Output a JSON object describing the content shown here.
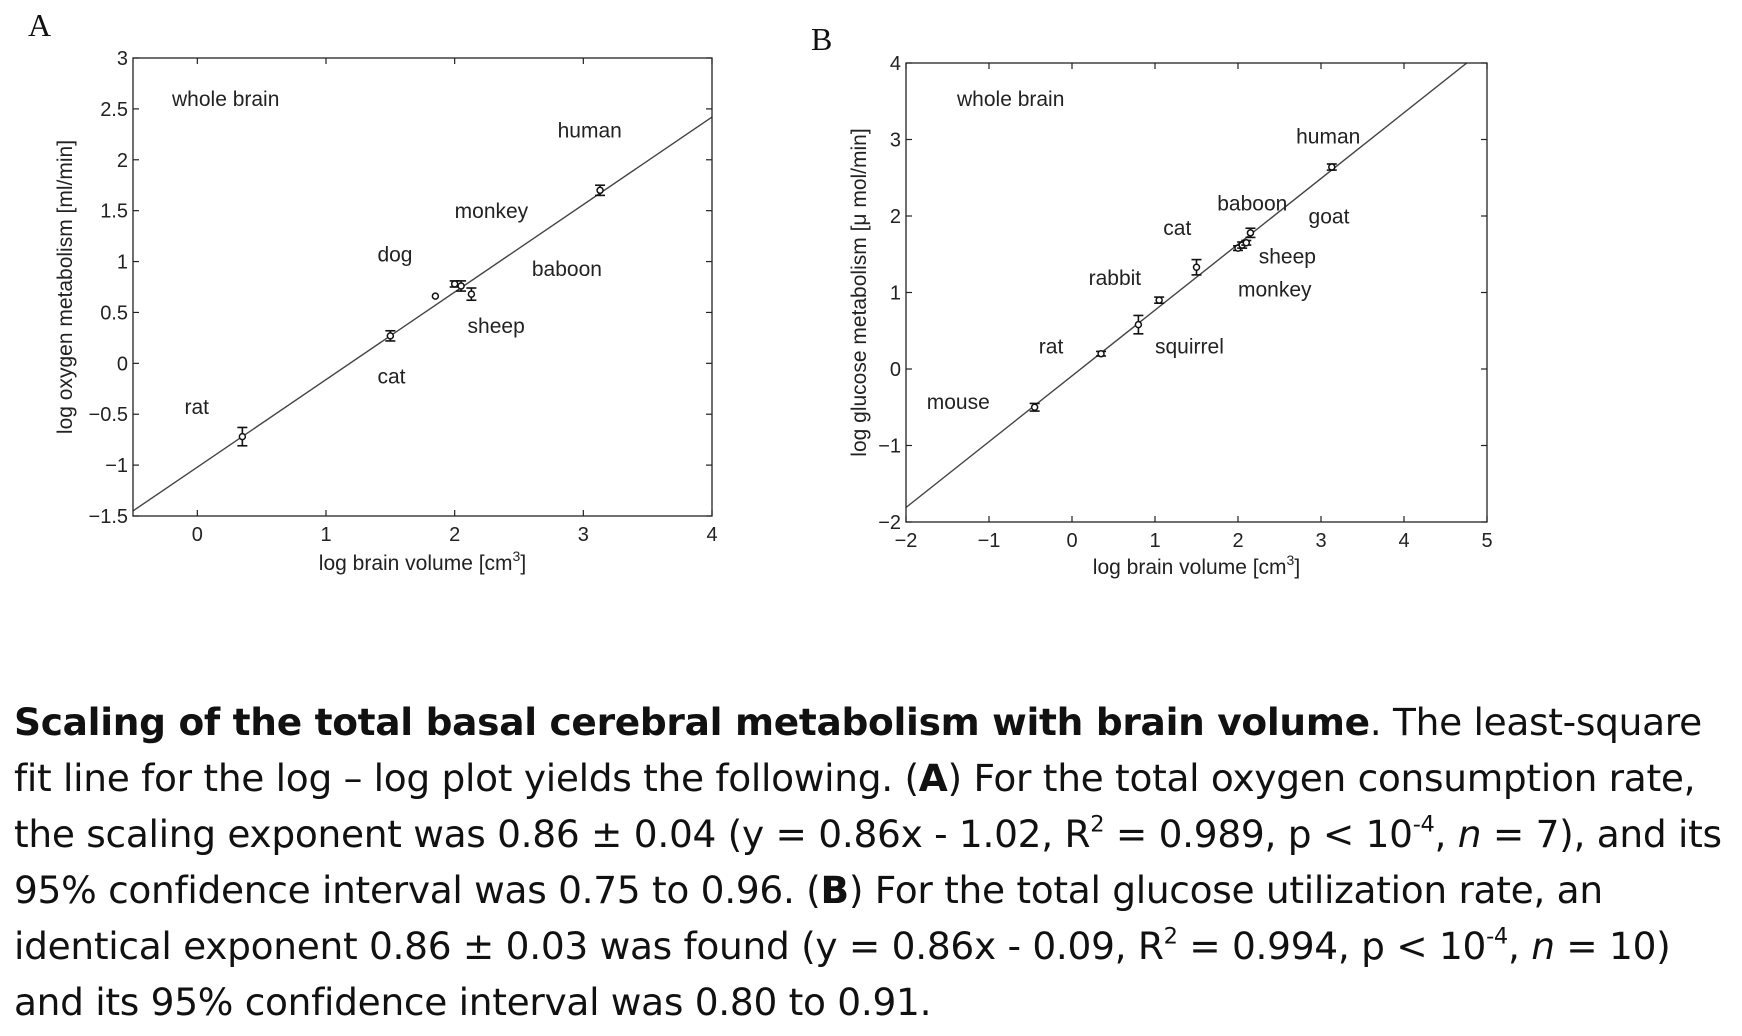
{
  "chart_data": [
    {
      "panel": "A",
      "type": "scatter",
      "annotation": "whole brain",
      "xlabel": "log brain volume [cm",
      "xlabel_sup": "3",
      "xlabel_end": "]",
      "ylabel": "log oxygen metabolism [ml/min]",
      "xlim": [
        -0.5,
        4
      ],
      "ylim": [
        -1.5,
        3
      ],
      "xticks": [
        0,
        1,
        2,
        3,
        4
      ],
      "xtick_labels": [
        "0",
        "1",
        "2",
        "3",
        "4"
      ],
      "yticks": [
        -1.5,
        -1,
        -0.5,
        0,
        0.5,
        1,
        1.5,
        2,
        2.5,
        3
      ],
      "ytick_labels": [
        "−1.5",
        "−1",
        "−0.5",
        "0",
        "0.5",
        "1",
        "1.5",
        "2",
        "2.5",
        "3"
      ],
      "grid": false,
      "fit_line": {
        "slope": 0.86,
        "intercept": -1.02
      },
      "points": [
        {
          "x": 0.35,
          "y": -0.72,
          "err": 0.09,
          "label": "rat"
        },
        {
          "x": 1.5,
          "y": 0.27,
          "err": 0.05,
          "label": "cat"
        },
        {
          "x": 1.85,
          "y": 0.66,
          "err": 0.0,
          "label": "dog"
        },
        {
          "x": 2.0,
          "y": 0.78,
          "err": 0.03,
          "label": "monkey"
        },
        {
          "x": 2.05,
          "y": 0.76,
          "err": 0.05,
          "label": "baboon"
        },
        {
          "x": 2.13,
          "y": 0.68,
          "err": 0.06,
          "label": "sheep"
        },
        {
          "x": 3.13,
          "y": 1.7,
          "err": 0.05,
          "label": "human"
        }
      ],
      "labels": [
        {
          "text": "rat",
          "x": -0.1,
          "y": -0.5
        },
        {
          "text": "cat",
          "x": 1.4,
          "y": -0.2
        },
        {
          "text": "dog",
          "x": 1.4,
          "y": 1.0
        },
        {
          "text": "monkey",
          "x": 2.0,
          "y": 1.43
        },
        {
          "text": "baboon",
          "x": 2.6,
          "y": 0.86
        },
        {
          "text": "sheep",
          "x": 2.1,
          "y": 0.3
        },
        {
          "text": "human",
          "x": 2.8,
          "y": 2.22
        }
      ]
    },
    {
      "panel": "B",
      "type": "scatter",
      "annotation": "whole brain",
      "xlabel": "log brain volume [cm",
      "xlabel_sup": "3",
      "xlabel_end": "]",
      "ylabel": "log glucose metabolism [μ mol/min]",
      "xlim": [
        -2,
        5
      ],
      "ylim": [
        -2,
        4
      ],
      "xticks": [
        -2,
        -1,
        0,
        1,
        2,
        3,
        4,
        5
      ],
      "xtick_labels": [
        "−2",
        "−1",
        "0",
        "1",
        "2",
        "3",
        "4",
        "5"
      ],
      "yticks": [
        -2,
        -1,
        0,
        1,
        2,
        3,
        4
      ],
      "ytick_labels": [
        "−2",
        "−1",
        "0",
        "1",
        "2",
        "3",
        "4"
      ],
      "grid": false,
      "fit_line": {
        "slope": 0.86,
        "intercept": -0.09
      },
      "points": [
        {
          "x": -0.45,
          "y": -0.5,
          "err": 0.05,
          "label": "mouse"
        },
        {
          "x": 0.35,
          "y": 0.2,
          "err": 0.03,
          "label": "rat"
        },
        {
          "x": 0.8,
          "y": 0.58,
          "err": 0.12,
          "label": "squirrel"
        },
        {
          "x": 1.05,
          "y": 0.9,
          "err": 0.04,
          "label": "rabbit"
        },
        {
          "x": 1.5,
          "y": 1.33,
          "err": 0.1,
          "label": "cat"
        },
        {
          "x": 2.0,
          "y": 1.58,
          "err": 0.03,
          "label": "monkey"
        },
        {
          "x": 2.05,
          "y": 1.62,
          "err": 0.04,
          "label": "sheep"
        },
        {
          "x": 2.1,
          "y": 1.65,
          "err": 0.03,
          "label": "goat"
        },
        {
          "x": 2.15,
          "y": 1.78,
          "err": 0.06,
          "label": "baboon"
        },
        {
          "x": 3.13,
          "y": 2.64,
          "err": 0.04,
          "label": "human"
        }
      ],
      "labels": [
        {
          "text": "mouse",
          "x": -1.75,
          "y": -0.52
        },
        {
          "text": "rat",
          "x": -0.4,
          "y": 0.2
        },
        {
          "text": "squirrel",
          "x": 1.0,
          "y": 0.2
        },
        {
          "text": "rabbit",
          "x": 0.2,
          "y": 1.1
        },
        {
          "text": "cat",
          "x": 1.1,
          "y": 1.75
        },
        {
          "text": "baboon",
          "x": 1.75,
          "y": 2.07
        },
        {
          "text": "goat",
          "x": 2.85,
          "y": 1.9
        },
        {
          "text": "sheep",
          "x": 2.25,
          "y": 1.38
        },
        {
          "text": "monkey",
          "x": 2.0,
          "y": 0.95
        },
        {
          "text": "human",
          "x": 2.7,
          "y": 2.95
        }
      ]
    }
  ],
  "caption": {
    "title": "Scaling of the total basal cerebral metabolism with brain volume",
    "s1": ". The least-square fit line for the log – log plot yields the following. (",
    "a_letter": "A",
    "s2": ") For the total oxygen consumption rate, the scaling exponent was 0.86 ± 0.04 (y = 0.86x - 1.02, R",
    "sup2": "2",
    "s3": " = 0.989, p < 10",
    "sup_neg4": "-4",
    "s4": ", ",
    "n": "n",
    "s5": " = 7), and its 95% confidence interval was 0.75 to 0.96. (",
    "b_letter": "B",
    "s6": ") For the total glucose utilization rate, an identical exponent 0.86 ± 0.03 was found (y = 0.86x - 0.09, R",
    "s7": " = 0.994, p < 10",
    "s8": " = 10) and its 95% confidence interval was 0.80 to 0.91."
  }
}
